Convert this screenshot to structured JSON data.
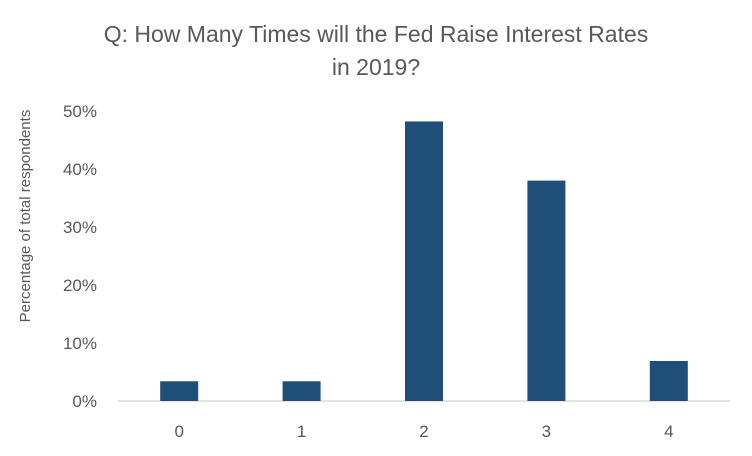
{
  "chart_data": {
    "type": "bar",
    "title_line1": "Q: How Many Times will the Fed Raise Interest Rates",
    "title_line2": "in 2019?",
    "ylabel": "Percentage of total respondents",
    "xlabel": "",
    "categories": [
      "0",
      "1",
      "2",
      "3",
      "4"
    ],
    "values": [
      3.4,
      3.4,
      48.2,
      38.0,
      6.9
    ],
    "ylim": [
      0,
      50
    ],
    "yticks": [
      "0%",
      "10%",
      "20%",
      "30%",
      "40%",
      "50%"
    ],
    "grid": false,
    "legend": "none",
    "colors": {
      "bar": "#1f4e79",
      "axis": "#d9d9d9",
      "text": "#595959"
    }
  }
}
